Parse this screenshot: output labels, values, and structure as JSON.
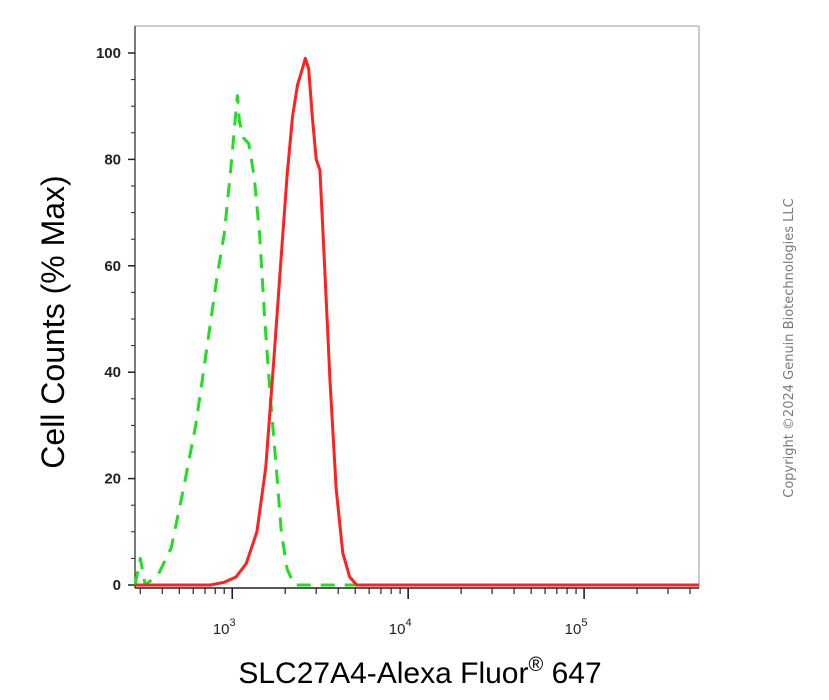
{
  "chart_data": {
    "type": "line",
    "title": "",
    "xlabel_main": "SLC27A4-Alexa Fluor",
    "xlabel_sup": "®",
    "xlabel_tail": " 647",
    "ylabel": "Cell Counts (% Max)",
    "x_scale": "log",
    "xlim": [
      280,
      450000
    ],
    "ylim": [
      0,
      100
    ],
    "y_ticks": [
      "0",
      "20",
      "40",
      "60",
      "80",
      "100"
    ],
    "x_ticks": [
      {
        "base": "10",
        "exp": "3"
      },
      {
        "base": "10",
        "exp": "4"
      },
      {
        "base": "10",
        "exp": "5"
      }
    ],
    "grid": false,
    "series": [
      {
        "color": "#22dd22",
        "style": "dashed",
        "points": [
          [
            280,
            0
          ],
          [
            300,
            5
          ],
          [
            320,
            0
          ],
          [
            380,
            2
          ],
          [
            450,
            7
          ],
          [
            520,
            17
          ],
          [
            620,
            30
          ],
          [
            720,
            45
          ],
          [
            820,
            58
          ],
          [
            900,
            66
          ],
          [
            980,
            78
          ],
          [
            1030,
            86
          ],
          [
            1070,
            92
          ],
          [
            1100,
            87
          ],
          [
            1160,
            84
          ],
          [
            1240,
            83
          ],
          [
            1330,
            77
          ],
          [
            1430,
            66
          ],
          [
            1530,
            50
          ],
          [
            1650,
            35
          ],
          [
            1780,
            22
          ],
          [
            1900,
            10
          ],
          [
            2050,
            3
          ],
          [
            2250,
            0
          ],
          [
            3000,
            0
          ],
          [
            450000,
            0
          ]
        ]
      },
      {
        "color": "#ff2020",
        "style": "solid",
        "points": [
          [
            280,
            0
          ],
          [
            750,
            0
          ],
          [
            900,
            0.5
          ],
          [
            1050,
            1.5
          ],
          [
            1200,
            4
          ],
          [
            1380,
            10
          ],
          [
            1550,
            22
          ],
          [
            1720,
            42
          ],
          [
            1900,
            62
          ],
          [
            2050,
            77
          ],
          [
            2200,
            88
          ],
          [
            2350,
            94
          ],
          [
            2500,
            97
          ],
          [
            2600,
            99
          ],
          [
            2720,
            97
          ],
          [
            2850,
            88
          ],
          [
            3000,
            80
          ],
          [
            3150,
            78
          ],
          [
            3350,
            60
          ],
          [
            3600,
            38
          ],
          [
            3900,
            18
          ],
          [
            4250,
            6
          ],
          [
            4650,
            1.5
          ],
          [
            5100,
            0
          ],
          [
            450000,
            0
          ]
        ]
      }
    ]
  },
  "copyright": "Copyright ©2024 Genuin Biotechnologies LLC"
}
